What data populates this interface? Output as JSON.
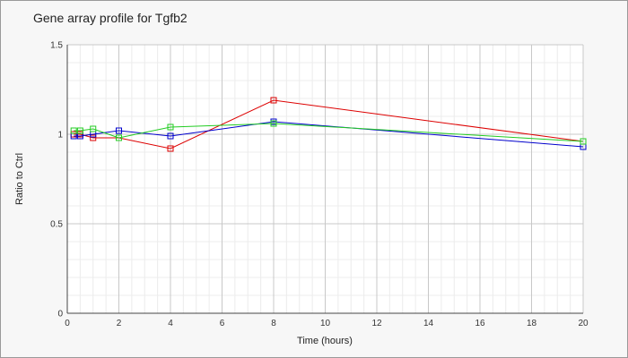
{
  "chart_data": {
    "type": "line",
    "title": "Gene array profile for Tgfb2",
    "xlabel": "Time (hours)",
    "ylabel": "Ratio to Ctrl",
    "xlim": [
      0,
      20
    ],
    "ylim": [
      0,
      1.5
    ],
    "xticks": [
      0,
      2,
      4,
      6,
      8,
      10,
      12,
      14,
      16,
      18,
      20
    ],
    "yticks": [
      0,
      0.5,
      1,
      1.5
    ],
    "ytick_labels": [
      "0",
      "0.5",
      "1",
      "1.5"
    ],
    "grid": true,
    "legend": "none",
    "series": [
      {
        "color": "#dd0000",
        "x": [
          0.25,
          0.5,
          1,
          2,
          4,
          8,
          20
        ],
        "y": [
          1.0,
          1.0,
          0.98,
          0.98,
          0.92,
          1.19,
          0.96
        ]
      },
      {
        "color": "#0000cc",
        "x": [
          0.25,
          0.5,
          1,
          2,
          4,
          8,
          20
        ],
        "y": [
          0.99,
          0.99,
          1.0,
          1.02,
          0.99,
          1.07,
          0.93
        ]
      },
      {
        "color": "#22cc22",
        "x": [
          0.25,
          0.5,
          1,
          2,
          4,
          8,
          20
        ],
        "y": [
          1.02,
          1.02,
          1.03,
          0.98,
          1.04,
          1.06,
          0.96
        ]
      }
    ]
  }
}
